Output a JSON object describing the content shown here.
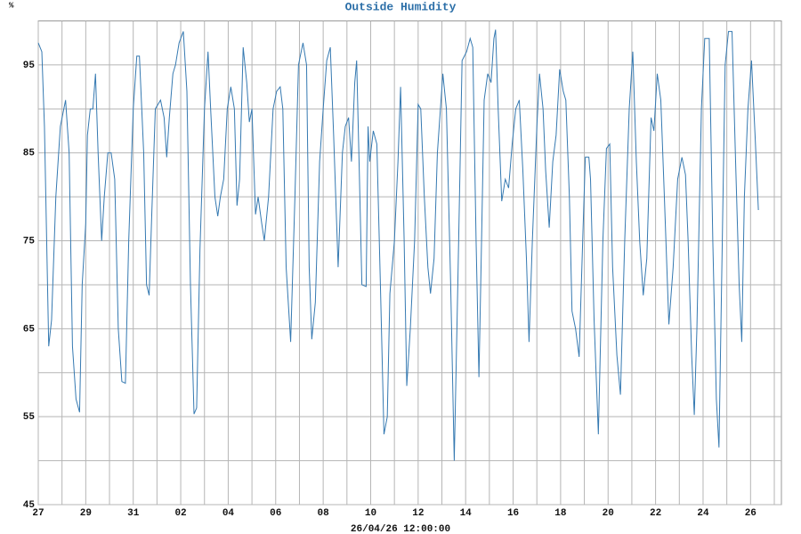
{
  "chart_data": {
    "type": "line",
    "title": "Outside Humidity",
    "ylabel": "%",
    "xlabel": "26/04/26 12:00:00",
    "x": [
      0,
      0.15,
      0.26,
      0.44,
      0.56,
      0.74,
      0.93,
      1.15,
      1.3,
      1.44,
      1.59,
      1.74,
      1.85,
      2.0,
      2.07,
      2.19,
      2.3,
      2.41,
      2.52,
      2.67,
      2.78,
      2.93,
      3.07,
      3.22,
      3.37,
      3.52,
      3.67,
      3.81,
      4.0,
      4.15,
      4.26,
      4.44,
      4.56,
      4.67,
      4.78,
      4.93,
      5.15,
      5.3,
      5.41,
      5.52,
      5.67,
      5.78,
      5.93,
      6.11,
      6.26,
      6.41,
      6.56,
      6.67,
      6.81,
      7.0,
      7.15,
      7.26,
      7.44,
      7.56,
      7.67,
      7.81,
      7.96,
      8.11,
      8.26,
      8.37,
      8.48,
      8.63,
      8.78,
      8.89,
      9.0,
      9.15,
      9.26,
      9.41,
      9.52,
      9.7,
      9.89,
      10.04,
      10.19,
      10.3,
      10.44,
      10.63,
      10.81,
      10.96,
      11.15,
      11.3,
      11.41,
      11.52,
      11.67,
      11.85,
      12.0,
      12.15,
      12.3,
      12.44,
      12.63,
      12.81,
      12.93,
      13.07,
      13.19,
      13.33,
      13.41,
      13.52,
      13.63,
      13.81,
      13.89,
      13.96,
      14.11,
      14.26,
      14.41,
      14.56,
      14.7,
      14.81,
      15.0,
      15.15,
      15.26,
      15.41,
      15.52,
      15.67,
      15.85,
      16.0,
      16.11,
      16.26,
      16.41,
      16.52,
      16.67,
      16.81,
      17.04,
      17.19,
      17.37,
      17.52,
      17.67,
      17.85,
      18.04,
      18.19,
      18.3,
      18.44,
      18.56,
      18.67,
      18.78,
      18.93,
      19.07,
      19.19,
      19.26,
      19.37,
      19.52,
      19.67,
      19.81,
      19.96,
      20.11,
      20.26,
      20.41,
      20.56,
      20.67,
      20.81,
      21.0,
      21.11,
      21.26,
      21.37,
      21.52,
      21.67,
      21.81,
      21.96,
      22.11,
      22.22,
      22.37,
      22.48,
      22.63,
      22.78,
      22.93,
      23.04,
      23.19,
      23.26,
      23.41,
      23.59,
      23.78,
      23.93,
      24.07,
      24.19,
      24.37,
      24.52,
      24.7,
      24.89,
      25.04,
      25.19,
      25.33,
      25.48,
      25.63,
      25.81,
      25.93,
      26.07,
      26.22,
      26.37,
      26.56,
      26.74,
      26.93,
      27.11,
      27.26,
      27.37,
      27.52,
      27.63,
      27.74,
      27.93,
      28.07,
      28.26,
      28.41,
      28.56,
      28.67,
      28.78,
      28.93,
      29.07,
      29.22,
      29.37,
      29.52,
      29.63,
      29.74,
      29.89,
      30.04,
      30.19,
      30.33
    ],
    "series": [
      {
        "name": "Outside Humidity",
        "color": "#3579b1",
        "values": [
          97.5,
          96.5,
          88,
          63,
          66,
          80,
          88,
          91,
          85,
          63,
          57,
          55.5,
          70,
          77,
          87,
          90,
          90,
          94,
          85,
          75,
          80,
          85,
          85,
          82,
          65,
          59,
          58.8,
          75,
          90,
          96,
          96,
          85,
          70,
          68.8,
          78,
          90,
          91,
          89,
          84.5,
          89,
          94,
          95,
          97.5,
          98.8,
          92,
          70,
          55.3,
          56,
          74,
          90,
          96.5,
          90,
          80,
          77.8,
          80,
          82,
          90,
          92.5,
          90,
          79,
          82,
          97,
          93,
          88.5,
          90,
          78,
          80,
          77,
          75,
          80,
          90,
          92,
          92.5,
          90,
          72,
          63.5,
          80,
          95,
          97.5,
          95,
          72,
          63.8,
          68,
          84,
          90,
          95.5,
          97,
          87,
          72,
          85,
          88,
          89,
          84,
          93,
          95.5,
          83,
          70,
          69.8,
          88,
          84,
          87.5,
          86,
          70,
          53,
          55,
          69,
          75,
          84,
          92.5,
          75,
          58.5,
          65,
          75,
          90.5,
          90,
          80,
          72,
          69,
          73,
          85,
          94,
          90,
          70,
          50,
          70,
          95.5,
          96.5,
          98,
          97,
          75,
          59.5,
          75,
          91,
          94,
          93,
          98,
          99,
          90,
          79.5,
          82,
          81,
          86,
          90,
          91,
          83,
          73,
          63.5,
          75,
          88,
          94,
          90,
          83,
          76.5,
          84,
          87,
          94.5,
          92,
          91,
          80,
          67,
          65,
          61.8,
          75,
          84.5,
          84.5,
          82,
          66,
          53,
          75,
          85.5,
          86,
          72,
          62,
          57.5,
          75,
          90,
          96.5,
          84,
          75,
          68.8,
          73,
          89,
          87.5,
          94,
          91,
          80,
          65.5,
          72,
          82,
          84.5,
          82.5,
          75,
          62,
          55.2,
          65,
          90,
          98,
          98,
          75,
          57,
          51.5,
          70,
          95,
          98.8,
          98.8,
          84,
          70,
          63.5,
          80,
          90,
          95.5,
          87,
          78.5
        ]
      }
    ],
    "xlim": [
      0,
      31.3
    ],
    "xticks": [
      {
        "value": 0,
        "label": "27"
      },
      {
        "value": 2,
        "label": "29"
      },
      {
        "value": 4,
        "label": "31"
      },
      {
        "value": 6,
        "label": "02"
      },
      {
        "value": 8,
        "label": "04"
      },
      {
        "value": 10,
        "label": "06"
      },
      {
        "value": 12,
        "label": "08"
      },
      {
        "value": 14,
        "label": "10"
      },
      {
        "value": 16,
        "label": "12"
      },
      {
        "value": 18,
        "label": "14"
      },
      {
        "value": 20,
        "label": "16"
      },
      {
        "value": 22,
        "label": "18"
      },
      {
        "value": 24,
        "label": "20"
      },
      {
        "value": 26,
        "label": "22"
      },
      {
        "value": 28,
        "label": "24"
      },
      {
        "value": 30,
        "label": "26"
      }
    ],
    "ylim": [
      45,
      100
    ],
    "yticks": [
      45,
      55,
      65,
      75,
      85,
      95
    ],
    "grid": true
  }
}
